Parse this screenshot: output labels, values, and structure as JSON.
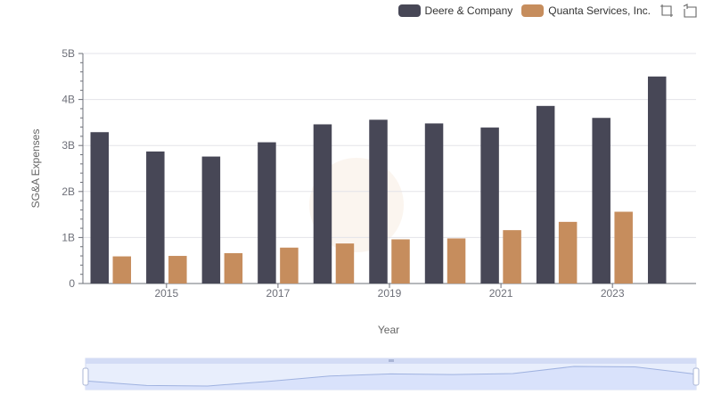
{
  "chart_data": {
    "type": "bar",
    "xlabel": "Year",
    "ylabel": "SG&A Expenses",
    "categories": [
      "2014",
      "2015",
      "2016",
      "2017",
      "2018",
      "2019",
      "2020",
      "2021",
      "2022",
      "2023",
      "2024"
    ],
    "x_tick_labels": [
      "2015",
      "2017",
      "2019",
      "2021",
      "2023"
    ],
    "y_tick_labels": [
      "0",
      "1B",
      "2B",
      "3B",
      "4B",
      "5B"
    ],
    "ylim": [
      0,
      5000000000
    ],
    "grid": true,
    "legend_position": "top-right",
    "series": [
      {
        "name": "Deere & Company",
        "color": "#474756",
        "values": [
          3290000000,
          2870000000,
          2760000000,
          3070000000,
          3460000000,
          3560000000,
          3480000000,
          3390000000,
          3860000000,
          3600000000,
          4500000000
        ]
      },
      {
        "name": "Quanta Services, Inc.",
        "color": "#c68d5d",
        "values": [
          590000000,
          600000000,
          660000000,
          780000000,
          870000000,
          960000000,
          980000000,
          1160000000,
          1340000000,
          1560000000,
          null
        ]
      }
    ],
    "zoom_slider": {
      "start_percent": 0,
      "end_percent": 100
    }
  },
  "toolbox": {
    "zoom_icon": "zoom-select-icon",
    "restore_icon": "zoom-reset-icon"
  }
}
